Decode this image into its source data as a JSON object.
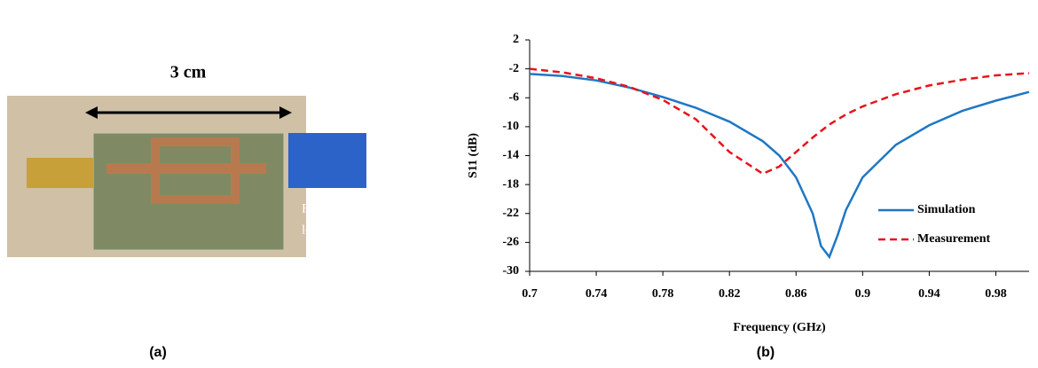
{
  "photo": {
    "scale_label": "3 cm",
    "load_label": [
      "Resisitive",
      "load"
    ]
  },
  "captions": [
    "(a)",
    "(b)"
  ],
  "chart_data": {
    "type": "line",
    "x_label": "Frequency (GHz)",
    "y_label": "S11 (dB)",
    "x": [
      0.7,
      0.72,
      0.74,
      0.76,
      0.78,
      0.8,
      0.82,
      0.84,
      0.85,
      0.86,
      0.87,
      0.875,
      0.88,
      0.885,
      0.89,
      0.9,
      0.92,
      0.94,
      0.96,
      0.98,
      1.0
    ],
    "series": [
      {
        "name": "Simulation",
        "color": "#1f77c4",
        "dash": false,
        "values": [
          -2.7,
          -3.0,
          -3.6,
          -4.6,
          -5.9,
          -7.4,
          -9.3,
          -12.0,
          -14.0,
          -17.0,
          -22.0,
          -26.5,
          -28.0,
          -25.0,
          -21.5,
          -17.0,
          -12.5,
          -9.8,
          -7.8,
          -6.4,
          -5.2
        ]
      },
      {
        "name": "Measurement",
        "color": "#e8131b",
        "dash": true,
        "values": [
          -2.0,
          -2.5,
          -3.3,
          -4.5,
          -6.3,
          -9.0,
          -13.5,
          -16.5,
          -15.5,
          -13.5,
          -11.5,
          -10.6,
          -9.7,
          -9.0,
          -8.3,
          -7.2,
          -5.5,
          -4.3,
          -3.5,
          -2.9,
          -2.6
        ]
      }
    ],
    "xlim": [
      0.7,
      1.0
    ],
    "xticks": [
      0.7,
      0.74,
      0.78,
      0.82,
      0.86,
      0.9,
      0.94,
      0.98
    ],
    "ylim": [
      -30,
      2
    ],
    "yticks": [
      2,
      -2,
      -6,
      -10,
      -14,
      -18,
      -22,
      -26,
      -30
    ],
    "legend": "lower right"
  }
}
